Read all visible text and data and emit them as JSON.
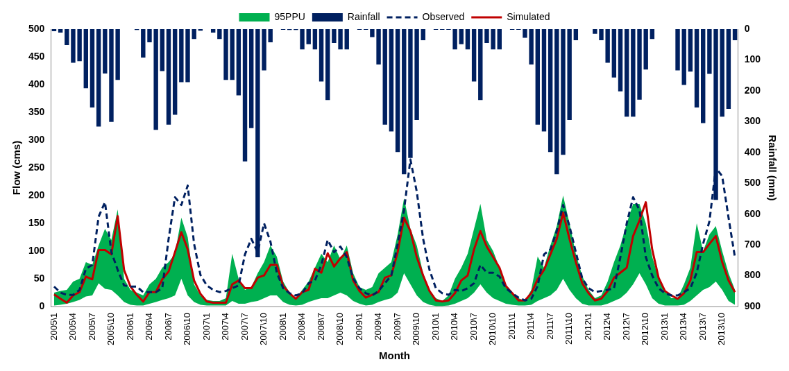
{
  "chart_data": {
    "type": "line",
    "xlabel": "Month",
    "ylabel": "Flow (cms)",
    "y2label": "Rainfall (mm)",
    "categories": [
      "2005\\1",
      null,
      null,
      "2005\\4",
      null,
      null,
      "2005\\7",
      null,
      null,
      "2005\\10",
      null,
      null,
      "2006\\1",
      null,
      null,
      "2006\\4",
      null,
      null,
      "2006\\7",
      null,
      null,
      "2006\\10",
      null,
      null,
      "2007\\1",
      null,
      null,
      "2007\\4",
      null,
      null,
      "2007\\7",
      null,
      null,
      "2007\\10",
      null,
      null,
      "2008\\1",
      null,
      null,
      "2008\\4",
      null,
      null,
      "2008\\7",
      null,
      null,
      "2008\\10",
      null,
      null,
      "2009\\1",
      null,
      null,
      "2009\\4",
      null,
      null,
      "2009\\7",
      null,
      null,
      "2009\\10",
      null,
      null,
      "2010\\1",
      null,
      null,
      "2010\\4",
      null,
      null,
      "2010\\7",
      null,
      null,
      "2010\\10",
      null,
      null,
      "2011\\1",
      null,
      null,
      "2011\\4",
      null,
      null,
      "2011\\7",
      null,
      null,
      "2011\\10",
      null,
      null,
      "2012\\1",
      null,
      null,
      "2012\\4",
      null,
      null,
      "2012\\7",
      null,
      null,
      "2012\\10",
      null,
      null,
      "2013\\1",
      null,
      null,
      "2013\\4",
      null,
      null,
      "2013\\7",
      null,
      null,
      "2013\\10",
      null,
      null
    ],
    "series": [
      {
        "name": "95PPU",
        "type": "area",
        "color": "#00b050",
        "lower": [
          2,
          3,
          5,
          8,
          12,
          18,
          20,
          42,
          32,
          30,
          20,
          8,
          3,
          2,
          2,
          5,
          8,
          12,
          15,
          20,
          50,
          20,
          8,
          3,
          2,
          2,
          2,
          2,
          10,
          5,
          5,
          8,
          10,
          15,
          20,
          20,
          8,
          3,
          2,
          3,
          8,
          12,
          15,
          15,
          20,
          25,
          20,
          10,
          5,
          2,
          3,
          8,
          12,
          15,
          25,
          60,
          40,
          20,
          8,
          3,
          1,
          1,
          2,
          5,
          10,
          15,
          25,
          40,
          25,
          15,
          10,
          5,
          3,
          2,
          2,
          3,
          10,
          15,
          20,
          30,
          50,
          30,
          15,
          5,
          2,
          2,
          2,
          5,
          10,
          15,
          25,
          40,
          60,
          40,
          15,
          5,
          2,
          2,
          2,
          3,
          10,
          20,
          30,
          35,
          45,
          30,
          10,
          3
        ],
        "values": [
          null,
          null,
          null,
          null,
          null,
          null,
          null,
          null,
          null,
          null,
          null,
          null,
          null,
          null,
          null,
          null,
          null,
          null,
          null,
          null,
          null,
          null,
          null,
          null,
          null,
          null,
          null,
          null,
          null,
          null,
          null,
          null,
          null,
          null,
          null,
          null,
          null,
          null,
          null,
          null,
          null,
          null,
          null,
          null,
          null,
          null,
          null,
          null,
          null,
          null,
          null,
          null,
          null,
          null,
          null,
          null,
          null,
          null,
          null,
          null,
          null,
          null,
          null,
          null,
          null,
          null,
          null,
          null,
          null,
          null,
          null,
          null,
          null,
          null,
          null,
          null,
          null,
          null,
          null,
          null,
          null,
          null,
          null,
          null,
          null,
          null,
          null,
          null,
          null,
          null,
          null,
          null,
          null,
          null,
          null,
          null,
          null,
          null,
          null,
          null,
          null,
          null,
          null,
          null,
          null,
          null,
          null,
          null
        ],
        "upper": [
          25,
          28,
          30,
          45,
          50,
          80,
          75,
          110,
          140,
          120,
          175,
          50,
          30,
          25,
          20,
          40,
          50,
          70,
          80,
          95,
          160,
          125,
          40,
          20,
          12,
          10,
          10,
          15,
          95,
          50,
          30,
          35,
          60,
          80,
          110,
          90,
          45,
          25,
          15,
          30,
          45,
          70,
          95,
          80,
          110,
          85,
          110,
          60,
          35,
          30,
          35,
          60,
          70,
          80,
          130,
          195,
          140,
          110,
          60,
          30,
          15,
          10,
          20,
          50,
          70,
          95,
          140,
          185,
          120,
          100,
          70,
          40,
          25,
          15,
          10,
          30,
          90,
          70,
          110,
          145,
          200,
          150,
          95,
          55,
          30,
          15,
          20,
          45,
          80,
          110,
          150,
          185,
          185,
          150,
          90,
          50,
          30,
          15,
          15,
          40,
          70,
          150,
          100,
          130,
          145,
          100,
          60,
          30
        ]
      },
      {
        "name": "Rainfall",
        "type": "bar",
        "axis": "y2",
        "color": "#002060",
        "values": [
          7,
          11,
          52,
          109,
          104,
          192,
          254,
          316,
          144,
          301,
          165,
          0,
          0,
          3,
          92,
          43,
          327,
          136,
          310,
          278,
          172,
          172,
          32,
          5,
          0,
          11,
          32,
          165,
          165,
          215,
          429,
          321,
          740,
          134,
          43,
          0,
          2,
          3,
          3,
          66,
          49,
          66,
          170,
          230,
          45,
          66,
          66,
          0,
          2,
          2,
          26,
          115,
          310,
          332,
          399,
          471,
          418,
          295,
          36,
          0,
          2,
          2,
          2,
          66,
          49,
          66,
          170,
          230,
          45,
          66,
          66,
          0,
          2,
          2,
          28,
          115,
          310,
          332,
          399,
          471,
          408,
          295,
          36,
          0,
          0,
          15,
          36,
          109,
          157,
          202,
          284,
          284,
          229,
          131,
          32,
          0,
          0,
          0,
          134,
          181,
          138,
          254,
          305,
          145,
          554,
          284,
          259,
          36
        ]
      },
      {
        "name": "Observed",
        "line_style": "dashed",
        "color": "#002060",
        "values": [
          36,
          25,
          21,
          21,
          30,
          68,
          75,
          162,
          188,
          98,
          66,
          38,
          36,
          36,
          26,
          26,
          26,
          33,
          122,
          197,
          183,
          218,
          113,
          57,
          38,
          30,
          26,
          28,
          33,
          38,
          94,
          122,
          98,
          150,
          117,
          61,
          33,
          24,
          20,
          24,
          42,
          47,
          75,
          120,
          98,
          108,
          89,
          51,
          33,
          24,
          20,
          28,
          42,
          56,
          113,
          174,
          265,
          207,
          122,
          66,
          33,
          24,
          21,
          30,
          28,
          33,
          42,
          75,
          61,
          61,
          54,
          33,
          24,
          16,
          11,
          14,
          37,
          94,
          103,
          136,
          183,
          145,
          98,
          51,
          33,
          26,
          28,
          30,
          33,
          89,
          150,
          197,
          174,
          89,
          56,
          33,
          24,
          20,
          20,
          26,
          33,
          61,
          113,
          154,
          250,
          235,
          160,
          89
        ]
      },
      {
        "name": "Simulated",
        "line_style": "solid",
        "color": "#c00000",
        "values": [
          22,
          14,
          7,
          20,
          26,
          54,
          49,
          102,
          102,
          94,
          163,
          66,
          36,
          21,
          9,
          26,
          26,
          49,
          63,
          98,
          134,
          103,
          47,
          23,
          9,
          7,
          7,
          7,
          40,
          47,
          33,
          33,
          52,
          56,
          75,
          75,
          37,
          24,
          14,
          26,
          30,
          68,
          61,
          96,
          72,
          87,
          98,
          47,
          28,
          16,
          21,
          26,
          52,
          56,
          98,
          160,
          136,
          89,
          56,
          28,
          11,
          9,
          11,
          24,
          47,
          56,
          103,
          136,
          108,
          89,
          70,
          37,
          24,
          11,
          11,
          24,
          49,
          66,
          94,
          122,
          169,
          122,
          80,
          42,
          24,
          11,
          14,
          28,
          52,
          61,
          70,
          127,
          155,
          188,
          103,
          52,
          28,
          20,
          14,
          24,
          47,
          98,
          98,
          113,
          127,
          80,
          47,
          26
        ]
      }
    ],
    "ylim": [
      0,
      500
    ],
    "yticks": [
      0,
      50,
      100,
      150,
      200,
      250,
      300,
      350,
      400,
      450,
      500
    ],
    "y2lim": [
      900,
      0
    ],
    "y2ticks": [
      0,
      100,
      200,
      300,
      400,
      500,
      600,
      700,
      800,
      900
    ],
    "grid": false,
    "legend": "top",
    "marker": "none"
  }
}
